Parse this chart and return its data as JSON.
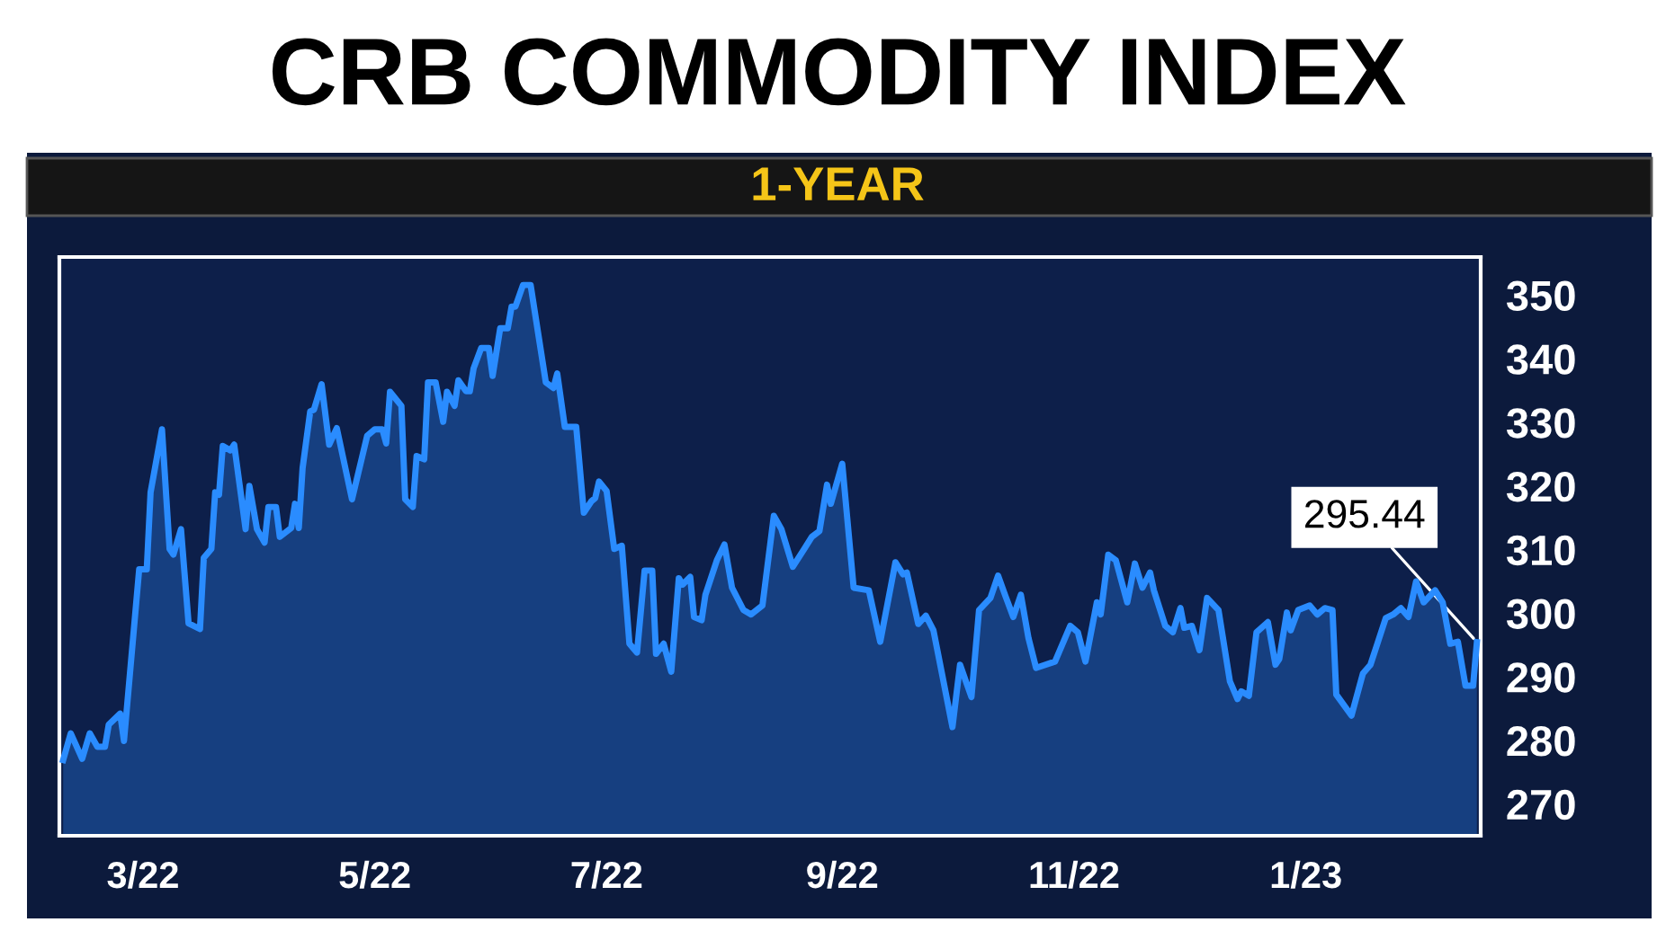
{
  "chart_data": {
    "type": "area",
    "title": "CRB COMMODITY INDEX",
    "subtitle": "1-YEAR",
    "x": [
      "2022-02-08",
      "2022-02-10",
      "2022-02-13",
      "2022-02-15",
      "2022-02-17",
      "2022-02-19",
      "2022-02-20",
      "2022-02-23",
      "2022-02-24",
      "2022-02-28",
      "2022-03-02",
      "2022-03-03",
      "2022-03-06",
      "2022-03-08",
      "2022-03-09",
      "2022-03-11",
      "2022-03-13",
      "2022-03-16",
      "2022-03-17",
      "2022-03-19",
      "2022-03-20",
      "2022-03-21",
      "2022-03-22",
      "2022-03-24",
      "2022-03-25",
      "2022-03-28",
      "2022-03-29",
      "2022-03-31",
      "2022-04-02",
      "2022-04-03",
      "2022-04-05",
      "2022-04-06",
      "2022-04-09",
      "2022-04-10",
      "2022-04-11",
      "2022-04-12",
      "2022-04-14",
      "2022-04-15",
      "2022-04-17",
      "2022-04-19",
      "2022-04-21",
      "2022-04-25",
      "2022-04-29",
      "2022-05-01",
      "2022-05-03",
      "2022-05-04",
      "2022-05-05",
      "2022-05-08",
      "2022-05-09",
      "2022-05-11",
      "2022-05-12",
      "2022-05-14",
      "2022-05-15",
      "2022-05-17",
      "2022-05-19",
      "2022-05-20",
      "2022-05-22",
      "2022-05-23",
      "2022-05-25",
      "2022-05-26",
      "2022-05-27",
      "2022-05-29",
      "2022-05-31",
      "2022-06-01",
      "2022-06-03",
      "2022-06-05",
      "2022-06-06",
      "2022-06-07",
      "2022-06-09",
      "2022-06-11",
      "2022-06-15",
      "2022-06-17",
      "2022-06-18",
      "2022-06-20",
      "2022-06-23",
      "2022-06-25",
      "2022-06-27",
      "2022-06-28",
      "2022-06-29",
      "2022-07-01",
      "2022-07-03",
      "2022-07-05",
      "2022-07-07",
      "2022-07-09",
      "2022-07-11",
      "2022-07-13",
      "2022-07-14",
      "2022-07-16",
      "2022-07-18",
      "2022-07-20",
      "2022-07-21",
      "2022-07-23",
      "2022-07-24",
      "2022-07-26",
      "2022-07-27",
      "2022-07-30",
      "2022-08-01",
      "2022-08-03",
      "2022-08-06",
      "2022-08-08",
      "2022-08-11",
      "2022-08-14",
      "2022-08-16",
      "2022-08-19",
      "2022-08-22",
      "2022-08-24",
      "2022-08-26",
      "2022-08-28",
      "2022-08-29",
      "2022-09-01",
      "2022-09-04",
      "2022-09-08",
      "2022-09-11",
      "2022-09-15",
      "2022-09-17",
      "2022-09-18",
      "2022-09-21",
      "2022-09-23",
      "2022-09-25",
      "2022-09-30",
      "2022-10-02",
      "2022-10-05",
      "2022-10-07",
      "2022-10-10",
      "2022-10-12",
      "2022-10-14",
      "2022-10-16",
      "2022-10-18",
      "2022-10-20",
      "2022-10-22",
      "2022-10-27",
      "2022-10-31",
      "2022-11-02",
      "2022-11-04",
      "2022-11-07",
      "2022-11-08",
      "2022-11-10",
      "2022-11-12",
      "2022-11-15",
      "2022-11-17",
      "2022-11-19",
      "2022-11-21",
      "2022-11-22",
      "2022-11-25",
      "2022-11-27",
      "2022-11-29",
      "2022-11-30",
      "2022-12-02",
      "2022-12-04",
      "2022-12-06",
      "2022-12-09",
      "2022-12-12",
      "2022-12-14",
      "2022-12-15",
      "2022-12-17",
      "2022-12-19",
      "2022-12-22",
      "2022-12-24",
      "2022-12-25",
      "2022-12-27",
      "2022-12-28",
      "2022-12-30",
      "2023-01-02",
      "2023-01-04",
      "2023-01-06",
      "2023-01-08",
      "2023-01-09",
      "2023-01-13",
      "2023-01-16",
      "2023-01-18",
      "2023-01-22",
      "2023-01-24",
      "2023-01-26",
      "2023-01-28",
      "2023-01-30",
      "2023-02-01",
      "2023-02-04",
      "2023-02-06",
      "2023-02-08",
      "2023-02-10",
      "2023-02-12",
      "2023-02-14",
      "2023-02-15"
    ],
    "series": [
      {
        "color": "#2a8cff",
        "values": [
          276.9,
          281.1,
          277.1,
          281.1,
          279,
          279,
          282.5,
          284.2,
          279.9,
          306.9,
          306.9,
          319,
          328.9,
          310.1,
          309.2,
          313.2,
          298.4,
          297.5,
          308.7,
          310.1,
          319,
          318.6,
          326.3,
          325.6,
          326.5,
          313.2,
          320,
          313.2,
          311.1,
          316.7,
          316.7,
          312,
          313.4,
          317.2,
          313.4,
          322.8,
          331.7,
          332,
          336,
          326.5,
          329.1,
          317.9,
          327.9,
          328.9,
          328.9,
          326.7,
          334.8,
          332.6,
          317.9,
          316.7,
          324.7,
          324.2,
          336.3,
          336.3,
          330.1,
          334.8,
          332.6,
          336.6,
          334.9,
          334.9,
          338.5,
          341.7,
          341.7,
          337.3,
          344.8,
          344.8,
          348.2,
          348.2,
          351.6,
          351.6,
          336.3,
          335.4,
          337.7,
          329.3,
          329.3,
          315.8,
          317.6,
          318.1,
          320.7,
          319.2,
          310.1,
          310.6,
          295.2,
          293.8,
          306.7,
          306.7,
          293.6,
          295.2,
          290.8,
          305.5,
          304.5,
          305.7,
          299.4,
          298.9,
          302.9,
          308.3,
          310.8,
          304,
          300.5,
          299.8,
          301.2,
          315.3,
          313.2,
          307.3,
          310.1,
          312,
          312.9,
          320.2,
          317.2,
          323.5,
          304,
          303.6,
          295.5,
          308,
          306.1,
          306.4,
          298.3,
          299.6,
          297.3,
          282.1,
          291.9,
          286.8,
          300.5,
          302.4,
          305.9,
          302.6,
          299.4,
          302.9,
          296.1,
          291.4,
          292.4,
          298,
          297,
          292.4,
          301.7,
          299.8,
          309.2,
          308.3,
          301.7,
          307.8,
          304,
          306.4,
          303.6,
          298,
          297,
          300.8,
          297.7,
          298,
          294.2,
          302.4,
          300.5,
          289.3,
          286.5,
          287.7,
          287,
          297,
          298.6,
          291.9,
          292.8,
          300.1,
          297.3,
          300.5,
          301.2,
          299.8,
          300.8,
          300.5,
          287.2,
          283.9,
          290.5,
          291.9,
          299.2,
          299.8,
          300.8,
          299.4,
          305,
          301.7,
          303.6,
          301.7,
          295.2,
          295.5,
          288.6,
          288.6,
          295.44
        ]
      }
    ],
    "xlim": [
      "2022-02-07",
      "2023-02-16"
    ],
    "xticks": [
      {
        "value": "2022-03-01",
        "label": "3/22"
      },
      {
        "value": "2022-05-01",
        "label": "5/22"
      },
      {
        "value": "2022-07-01",
        "label": "7/22"
      },
      {
        "value": "2022-09-01",
        "label": "9/22"
      },
      {
        "value": "2022-11-01",
        "label": "11/22"
      },
      {
        "value": "2023-01-01",
        "label": "1/23"
      }
    ],
    "ylim": [
      265,
      356
    ],
    "yticks": [
      270,
      280,
      290,
      300,
      310,
      320,
      330,
      340,
      350
    ],
    "annotations": [
      {
        "text": "295.44",
        "x": "2023-02-15",
        "y": 295.44
      }
    ],
    "grid": false,
    "legend": false
  }
}
